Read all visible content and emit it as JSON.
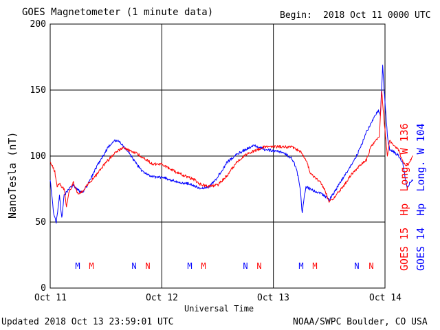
{
  "chart_data": {
    "type": "line",
    "title": "GOES Magnetometer (1 minute data)",
    "begin_label": "Begin:",
    "begin_value": "2018 Oct 11 0000 UTC",
    "xlabel": "Universal Time",
    "ylabel": "NanoTesla (nT)",
    "x_ticks": [
      "Oct 11",
      "Oct 12",
      "Oct 13",
      "Oct 14"
    ],
    "ylim": [
      0,
      200
    ],
    "y_ticks": [
      0,
      50,
      100,
      150,
      200
    ],
    "grid": true,
    "series": [
      {
        "name": "GOES 15 Hp Long. W 136",
        "color": "#ff0000",
        "points": [
          [
            0,
            96
          ],
          [
            1,
            88
          ],
          [
            1.5,
            77
          ],
          [
            2,
            79
          ],
          [
            3,
            75
          ],
          [
            3.5,
            62
          ],
          [
            4,
            72
          ],
          [
            5,
            80
          ],
          [
            5.5,
            75
          ],
          [
            6,
            71
          ],
          [
            7,
            73
          ],
          [
            8,
            78
          ],
          [
            10,
            86
          ],
          [
            12,
            95
          ],
          [
            14,
            103
          ],
          [
            15,
            105
          ],
          [
            16,
            106
          ],
          [
            17,
            104
          ],
          [
            18,
            103
          ],
          [
            20,
            99
          ],
          [
            22,
            94
          ],
          [
            24,
            94
          ],
          [
            27,
            88
          ],
          [
            29,
            85
          ],
          [
            31,
            82
          ],
          [
            32,
            79
          ],
          [
            34,
            77
          ],
          [
            36,
            78
          ],
          [
            38,
            85
          ],
          [
            40,
            95
          ],
          [
            42,
            101
          ],
          [
            44,
            104
          ],
          [
            46,
            107
          ],
          [
            48,
            107
          ],
          [
            50,
            107
          ],
          [
            52,
            107
          ],
          [
            54,
            103
          ],
          [
            55,
            97
          ],
          [
            56,
            87
          ],
          [
            57,
            83
          ],
          [
            58,
            81
          ],
          [
            59,
            75
          ],
          [
            60,
            65
          ],
          [
            61,
            68
          ],
          [
            62,
            73
          ],
          [
            63,
            77
          ],
          [
            65,
            87
          ],
          [
            67,
            94
          ],
          [
            68,
            97
          ],
          [
            69,
            107
          ],
          [
            70,
            112
          ],
          [
            70.8,
            115
          ],
          [
            71.3,
            150
          ],
          [
            71.8,
            127
          ],
          [
            72.5,
            100
          ],
          [
            73,
            112
          ],
          [
            74,
            108
          ],
          [
            75,
            104
          ],
          [
            75.8,
            96
          ],
          [
            76.3,
            93
          ],
          [
            77,
            94
          ],
          [
            78,
            100
          ]
        ],
        "markers": [
          "M",
          "N",
          "M",
          "N",
          "M",
          "N"
        ]
      },
      {
        "name": "GOES 14 Hp Long. W 104",
        "color": "#0000ff",
        "points": [
          [
            0,
            82
          ],
          [
            0.8,
            55
          ],
          [
            1.3,
            50
          ],
          [
            2,
            70
          ],
          [
            2.5,
            53
          ],
          [
            3,
            70
          ],
          [
            4,
            75
          ],
          [
            5,
            78
          ],
          [
            6,
            74
          ],
          [
            7,
            72
          ],
          [
            8,
            78
          ],
          [
            10,
            92
          ],
          [
            12,
            104
          ],
          [
            13,
            109
          ],
          [
            14,
            112
          ],
          [
            15,
            111
          ],
          [
            16,
            106
          ],
          [
            17,
            102
          ],
          [
            18,
            97
          ],
          [
            19,
            92
          ],
          [
            20,
            88
          ],
          [
            22,
            84
          ],
          [
            24,
            84
          ],
          [
            26,
            82
          ],
          [
            28,
            80
          ],
          [
            30,
            79
          ],
          [
            32,
            76
          ],
          [
            34,
            76
          ],
          [
            36,
            84
          ],
          [
            38,
            95
          ],
          [
            40,
            101
          ],
          [
            42,
            105
          ],
          [
            44,
            108
          ],
          [
            46,
            105
          ],
          [
            48,
            104
          ],
          [
            50,
            103
          ],
          [
            52,
            98
          ],
          [
            53,
            90
          ],
          [
            53.8,
            75
          ],
          [
            54.2,
            56
          ],
          [
            54.6,
            68
          ],
          [
            55,
            77
          ],
          [
            56,
            75
          ],
          [
            57,
            73
          ],
          [
            58,
            72
          ],
          [
            59,
            70
          ],
          [
            60,
            67
          ],
          [
            61,
            72
          ],
          [
            62,
            78
          ],
          [
            64,
            89
          ],
          [
            66,
            101
          ],
          [
            67,
            109
          ],
          [
            68,
            118
          ],
          [
            69,
            125
          ],
          [
            70,
            131
          ],
          [
            70.6,
            135
          ],
          [
            71,
            130
          ],
          [
            71.5,
            168
          ],
          [
            72,
            140
          ],
          [
            72.6,
            112
          ],
          [
            73,
            105
          ],
          [
            74,
            103
          ],
          [
            75,
            100
          ],
          [
            75.8,
            95
          ],
          [
            76.2,
            86
          ],
          [
            76.8,
            75
          ],
          [
            77.3,
            80
          ],
          [
            78,
            82
          ]
        ],
        "markers": [
          "M",
          "N",
          "M",
          "N",
          "M",
          "N"
        ]
      }
    ],
    "footer_left": "Updated 2018 Oct 13 23:59:01 UTC",
    "footer_right": "NOAA/SWPC Boulder, CO USA",
    "right_legend": [
      {
        "parts": [
          "GOES 15",
          "Hp",
          "Long. W 136"
        ],
        "color": "#ff0000"
      },
      {
        "parts": [
          "GOES 14",
          "Hp",
          "Long. W 104"
        ],
        "color": "#0000ff"
      }
    ]
  }
}
